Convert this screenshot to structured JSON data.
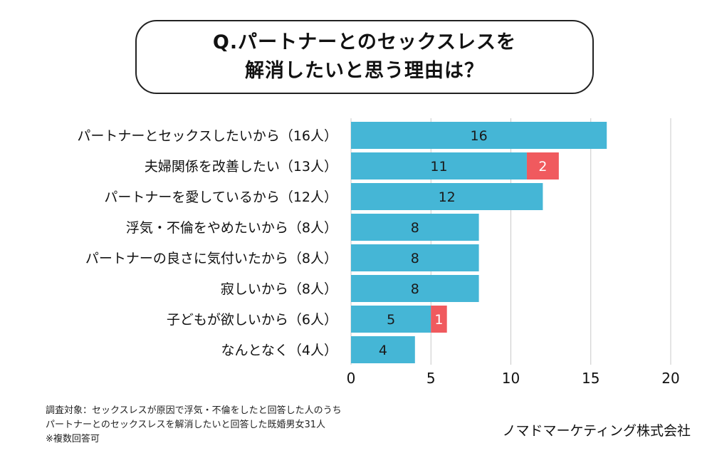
{
  "title": {
    "line1": "Q.パートナーとのセックスレスを",
    "line2": "解消したいと思う理由は？"
  },
  "colors": {
    "primary": "#45b6d6",
    "secondary": "#f05a5e",
    "grid": "#c8c8c8",
    "text": "#111111"
  },
  "chart_data": {
    "type": "bar",
    "orientation": "horizontal",
    "stacked": true,
    "categories": [
      "パートナーとセックスしたいから（16人）",
      "夫婦関係を改善したい（13人）",
      "パートナーを愛しているから（12人）",
      "浮気・不倫をやめたいから（8人）",
      "パートナーの良さに気付いたから（8人）",
      "寂しいから（8人）",
      "子どもが欲しいから（6人）",
      "なんとなく（4人）"
    ],
    "series": [
      {
        "values": [
          16,
          11,
          12,
          8,
          8,
          8,
          5,
          4
        ],
        "color": "#45b6d6"
      },
      {
        "values": [
          0,
          2,
          0,
          0,
          0,
          0,
          1,
          0
        ],
        "color": "#f05a5e"
      }
    ],
    "xlim": [
      0,
      20
    ],
    "xticks": [
      0,
      5,
      10,
      15,
      20
    ],
    "grid": true
  },
  "notes": {
    "line1": "調査対象：セックスレスが原因で浮気・不倫をしたと回答した人のうち",
    "line2": "パートナーとのセックスレスを解消したいと回答した既婚男女31人",
    "line3": "※複数回答可"
  },
  "company": "ノマドマーケティング株式会社"
}
